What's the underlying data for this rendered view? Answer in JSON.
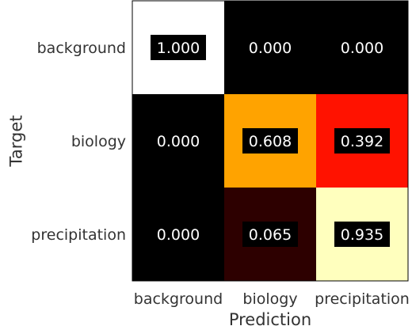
{
  "chart_data": {
    "type": "heatmap",
    "title": "",
    "xlabel": "Prediction",
    "ylabel": "Target",
    "x_categories": [
      "background",
      "biology",
      "precipitation"
    ],
    "y_categories": [
      "background",
      "biology",
      "precipitation"
    ],
    "values": [
      [
        1.0,
        0.0,
        0.0
      ],
      [
        0.0,
        0.608,
        0.392
      ],
      [
        0.0,
        0.065,
        0.935
      ]
    ],
    "value_labels": [
      [
        "1.000",
        "0.000",
        "0.000"
      ],
      [
        "0.000",
        "0.608",
        "0.392"
      ],
      [
        "0.000",
        "0.065",
        "0.935"
      ]
    ],
    "colormap": "hot",
    "vmin": 0,
    "vmax": 1,
    "label_background": "#000000",
    "label_color": "#ffffff"
  }
}
